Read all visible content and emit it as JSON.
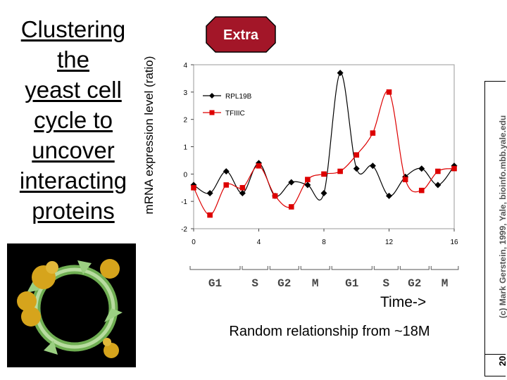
{
  "title_lines": [
    "Clustering",
    "the",
    "yeast cell",
    "cycle to",
    "uncover",
    "interacting",
    "proteins"
  ],
  "badge": {
    "label": "Extra",
    "color": "#a31628"
  },
  "chart_data": {
    "type": "line",
    "xlabel": "Time->",
    "ylabel": "mRNA expression level (ratio)",
    "xlim": [
      0,
      16
    ],
    "ylim": [
      -2,
      4
    ],
    "x_ticks": [
      0,
      4,
      8,
      12,
      16
    ],
    "y_ticks": [
      -2,
      -1,
      0,
      1,
      2,
      3,
      4
    ],
    "x": [
      0,
      1,
      2,
      3,
      4,
      5,
      6,
      7,
      8,
      9,
      10,
      11,
      12,
      13,
      14,
      15,
      16
    ],
    "series": [
      {
        "name": "RPL19B",
        "color": "#000000",
        "marker": "diamond",
        "values": [
          -0.4,
          -0.7,
          0.1,
          -0.7,
          0.4,
          -0.8,
          -0.3,
          -0.4,
          -0.7,
          3.7,
          0.2,
          0.3,
          -0.8,
          -0.1,
          0.2,
          -0.4,
          0.3
        ]
      },
      {
        "name": "TFIIIC",
        "color": "#dd0000",
        "marker": "square",
        "values": [
          -0.5,
          -1.5,
          -0.4,
          -0.5,
          0.3,
          -0.8,
          -1.2,
          -0.2,
          0.0,
          0.1,
          0.7,
          1.5,
          3.0,
          -0.2,
          -0.6,
          0.1,
          0.2
        ]
      }
    ],
    "phases": [
      {
        "label": "G1",
        "start": 0,
        "end": 3.2
      },
      {
        "label": "S",
        "start": 3.2,
        "end": 4.9
      },
      {
        "label": "G2",
        "start": 4.9,
        "end": 6.8
      },
      {
        "label": "M",
        "start": 6.8,
        "end": 8.7
      },
      {
        "label": "G1",
        "start": 8.7,
        "end": 11.3
      },
      {
        "label": "S",
        "start": 11.3,
        "end": 12.9
      },
      {
        "label": "G2",
        "start": 12.9,
        "end": 14.8
      },
      {
        "label": "M",
        "start": 14.8,
        "end": 16.6
      }
    ]
  },
  "caption": "Random relationship from ~18M",
  "credit": "(c) Mark Gerstein, 1999, Yale, bioinfo.mbb.yale.edu",
  "slide_number": "20"
}
